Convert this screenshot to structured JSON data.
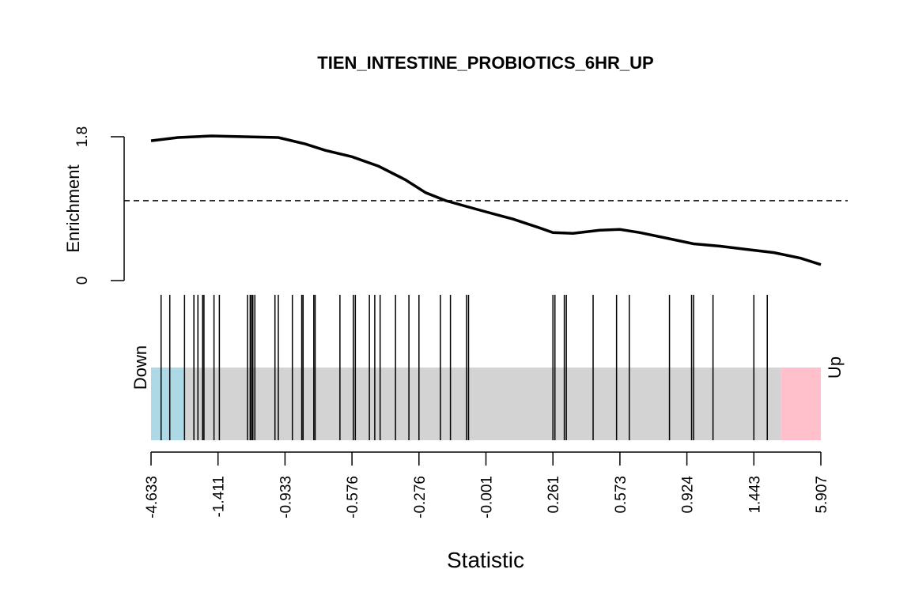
{
  "chart_data": {
    "type": "barcode",
    "title": "TIEN_INTESTINE_PROBIOTICS_6HR_UP",
    "xlabel": "Statistic",
    "ylabel": "Enrichment",
    "ylim": [
      0,
      1.8
    ],
    "yticks": [
      "0",
      "1.8"
    ],
    "xtick_labels": [
      "-4.633",
      "-1.411",
      "-0.933",
      "-0.576",
      "-0.276",
      "-0.001",
      "0.261",
      "0.573",
      "0.924",
      "1.443",
      "5.907"
    ],
    "down_label": "Down",
    "up_label": "Up",
    "colors": {
      "down": "#add8e6",
      "middle": "#d3d3d3",
      "up": "#ffc0cb",
      "line": "#000000"
    },
    "down_region_rank_fraction": 0.05,
    "up_region_rank_fraction": 0.06,
    "reference_line": 1.0,
    "enrichment_curve": {
      "rank_fraction": [
        0,
        0.04,
        0.09,
        0.14,
        0.19,
        0.2,
        0.23,
        0.26,
        0.3,
        0.34,
        0.38,
        0.41,
        0.44,
        0.47,
        0.5,
        0.54,
        0.58,
        0.6,
        0.63,
        0.67,
        0.7,
        0.73,
        0.77,
        0.81,
        0.85,
        0.89,
        0.93,
        0.97,
        1.0
      ],
      "enrichment": [
        1.75,
        1.79,
        1.81,
        1.8,
        1.79,
        1.77,
        1.71,
        1.63,
        1.55,
        1.43,
        1.26,
        1.1,
        1.0,
        0.93,
        0.86,
        0.77,
        0.66,
        0.6,
        0.59,
        0.63,
        0.64,
        0.6,
        0.53,
        0.46,
        0.43,
        0.39,
        0.35,
        0.28,
        0.2
      ]
    },
    "gene_positions_rank_fraction": [
      0.015,
      0.028,
      0.05,
      0.064,
      0.07,
      0.077,
      0.079,
      0.094,
      0.102,
      0.144,
      0.148,
      0.15,
      0.152,
      0.155,
      0.185,
      0.19,
      0.211,
      0.225,
      0.227,
      0.243,
      0.245,
      0.282,
      0.302,
      0.305,
      0.326,
      0.334,
      0.342,
      0.365,
      0.385,
      0.4,
      0.432,
      0.447,
      0.471,
      0.474,
      0.6,
      0.603,
      0.617,
      0.62,
      0.66,
      0.695,
      0.714,
      0.774,
      0.807,
      0.81,
      0.839,
      0.9,
      0.92
    ]
  }
}
